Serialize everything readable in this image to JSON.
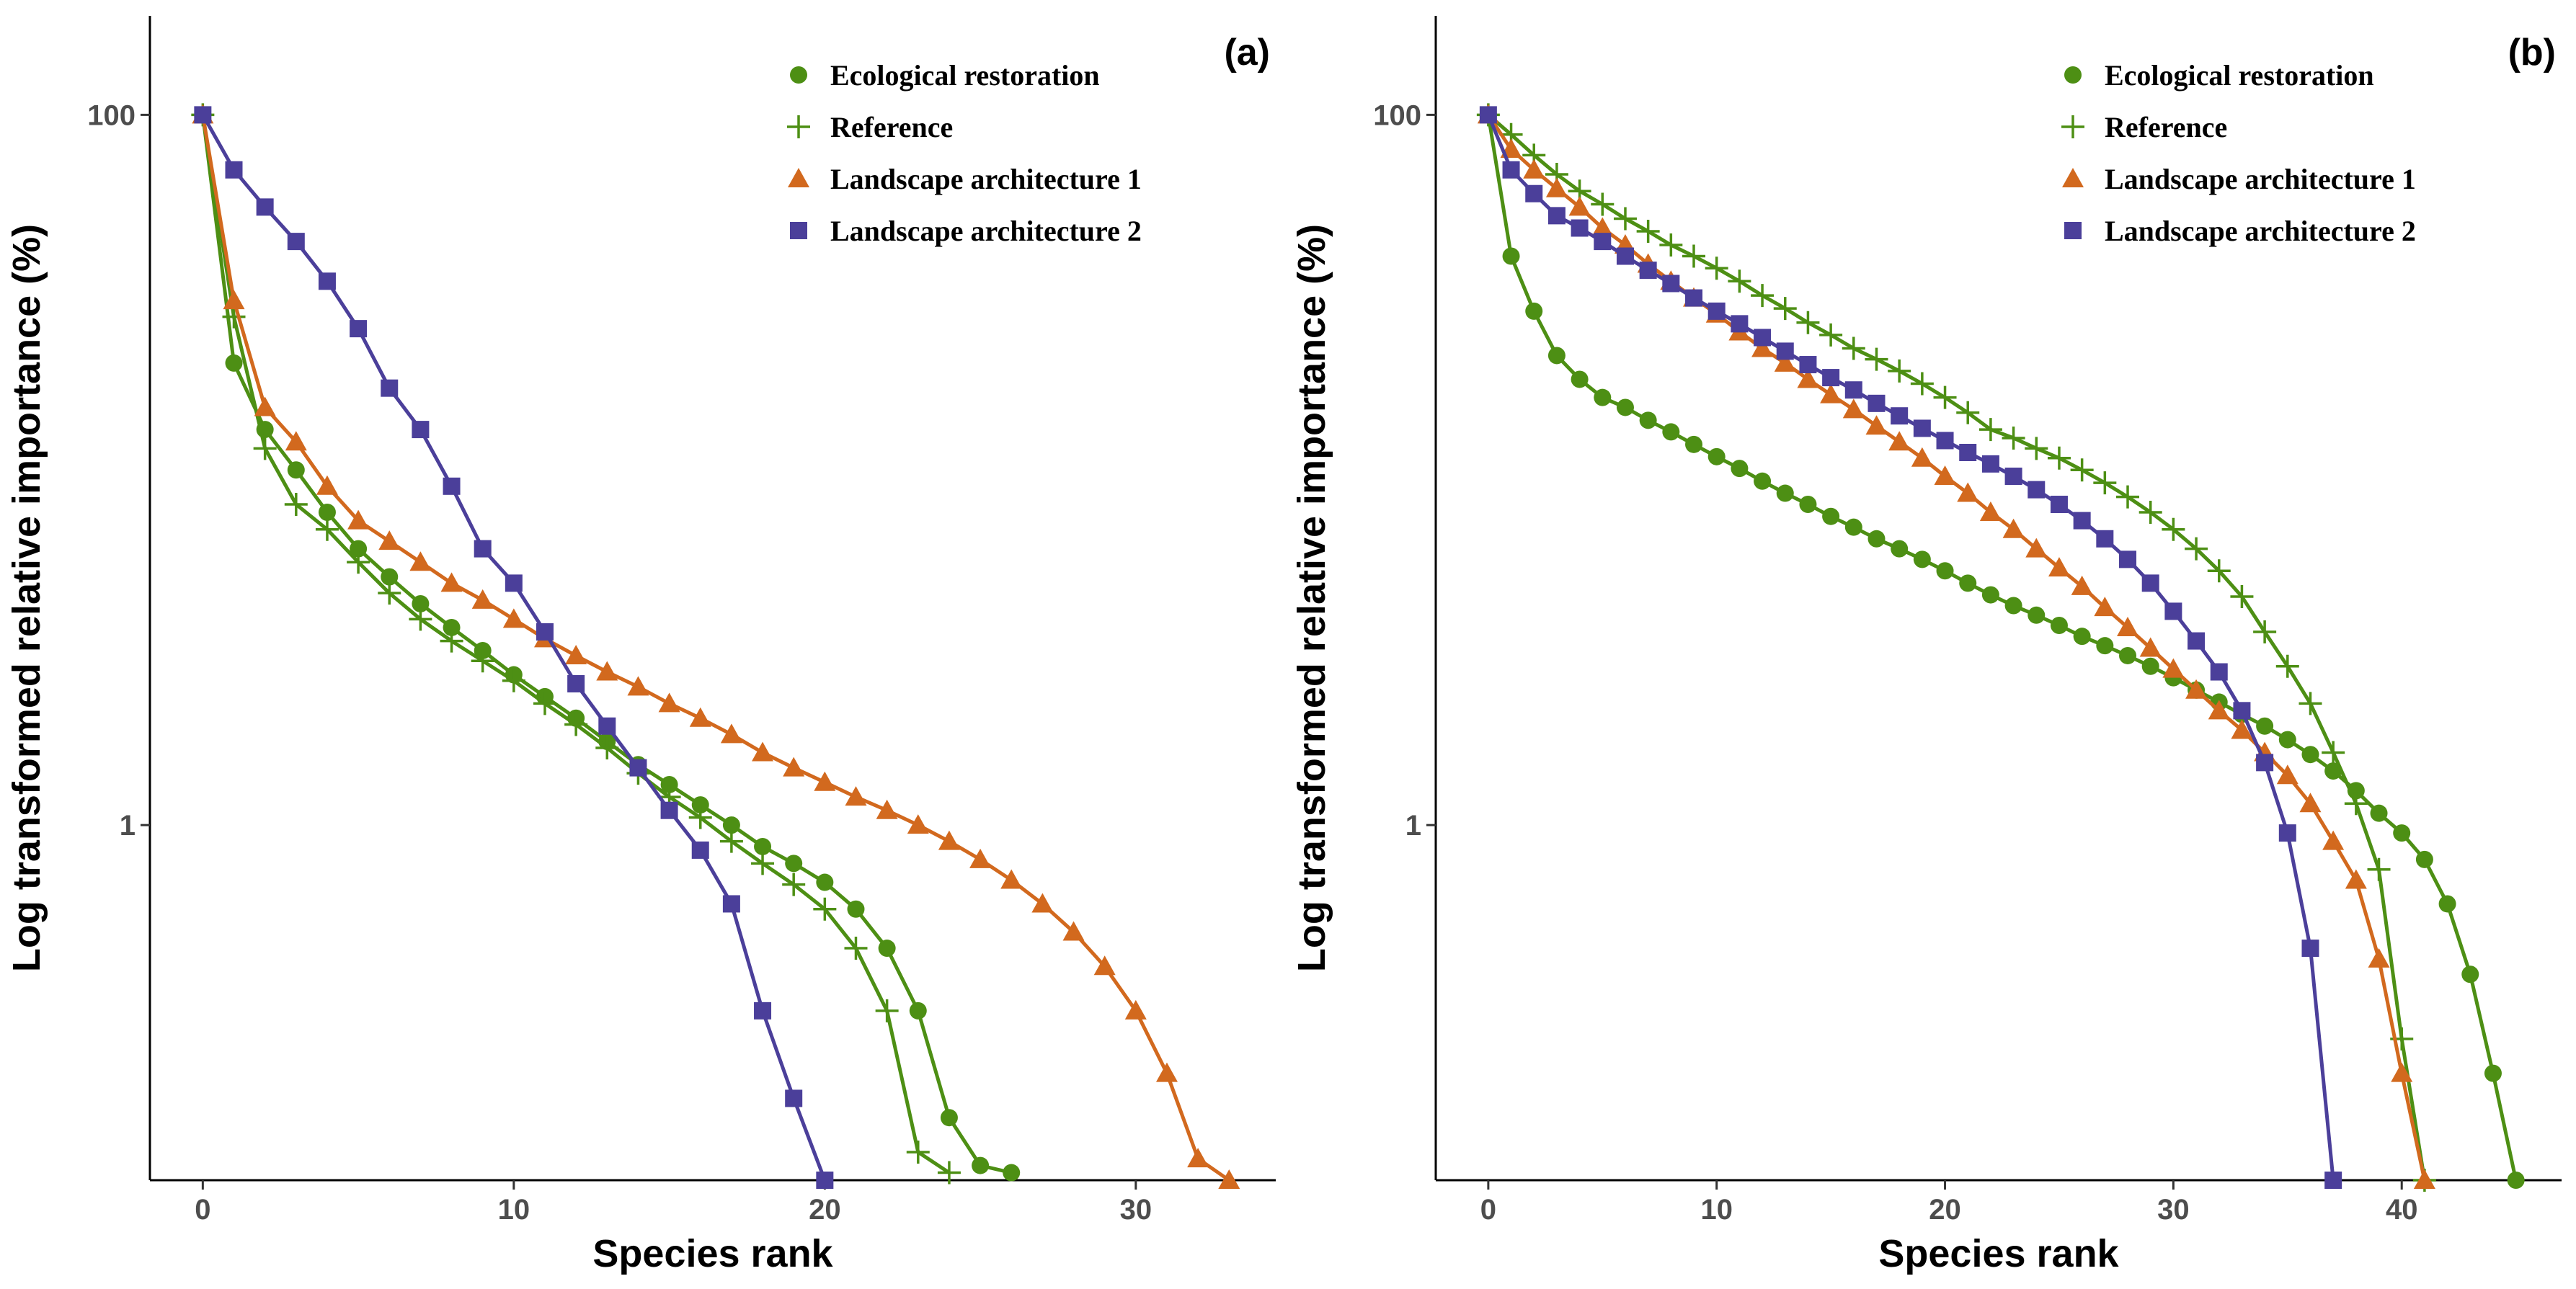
{
  "chart_data": [
    {
      "panel": "(a)",
      "type": "line",
      "xlabel": "Species rank",
      "ylabel": "Log transformed relative importance (%)",
      "xlim": [
        -1.7,
        34.5
      ],
      "ylim": [
        0.1,
        190
      ],
      "yscale": "log",
      "xticks": [
        0,
        10,
        20,
        30
      ],
      "yticks": [
        1,
        100
      ],
      "grid": false,
      "legend": "top-right",
      "series": [
        {
          "name": "Ecological restoration",
          "color": "#4d8f14",
          "marker": "circle",
          "x": [
            0,
            1,
            2,
            3,
            4,
            5,
            6,
            7,
            8,
            9,
            10,
            11,
            12,
            13,
            14,
            15,
            16,
            17,
            18,
            19,
            20,
            21,
            22,
            23,
            24,
            25,
            26
          ],
          "y": [
            100,
            20,
            13,
            10,
            7.6,
            6,
            5,
            4.2,
            3.6,
            3.1,
            2.65,
            2.3,
            2.0,
            1.72,
            1.48,
            1.3,
            1.14,
            1.0,
            0.87,
            0.78,
            0.69,
            0.58,
            0.45,
            0.3,
            0.15,
            0.11,
            0.105
          ]
        },
        {
          "name": "Reference",
          "color": "#4d8f14",
          "marker": "plus",
          "x": [
            0,
            1,
            2,
            3,
            4,
            5,
            6,
            7,
            8,
            9,
            10,
            11,
            12,
            13,
            14,
            15,
            16,
            17,
            18,
            19,
            20,
            21,
            22,
            23,
            24
          ],
          "y": [
            100,
            27,
            11.5,
            8,
            6.8,
            5.5,
            4.5,
            3.8,
            3.3,
            2.9,
            2.55,
            2.2,
            1.92,
            1.65,
            1.4,
            1.2,
            1.05,
            0.9,
            0.78,
            0.68,
            0.58,
            0.45,
            0.3,
            0.12,
            0.105
          ]
        },
        {
          "name": "Landscape architecture 1",
          "color": "#d2691e",
          "marker": "triangle",
          "x": [
            0,
            1,
            2,
            3,
            4,
            5,
            6,
            7,
            8,
            9,
            10,
            11,
            12,
            13,
            14,
            15,
            16,
            17,
            18,
            19,
            20,
            21,
            22,
            23,
            24,
            25,
            26,
            27,
            28,
            29,
            30,
            31,
            32,
            33
          ],
          "y": [
            100,
            30,
            15,
            12,
            9,
            7.2,
            6.3,
            5.5,
            4.8,
            4.3,
            3.8,
            3.35,
            3.0,
            2.7,
            2.45,
            2.2,
            2.0,
            1.8,
            1.6,
            1.45,
            1.32,
            1.2,
            1.1,
            1.0,
            0.9,
            0.8,
            0.7,
            0.6,
            0.5,
            0.4,
            0.3,
            0.2,
            0.115,
            0.1
          ]
        },
        {
          "name": "Landscape architecture 2",
          "color": "#4b3f9a",
          "marker": "square",
          "x": [
            0,
            1,
            2,
            3,
            4,
            5,
            6,
            7,
            8,
            9,
            10,
            11,
            12,
            13,
            14,
            15,
            16,
            17,
            18,
            19,
            20
          ],
          "y": [
            100,
            70,
            55,
            44,
            34,
            25,
            17,
            13,
            9,
            6,
            4.8,
            3.5,
            2.5,
            1.9,
            1.45,
            1.1,
            0.85,
            0.6,
            0.3,
            0.17,
            0.1
          ]
        }
      ]
    },
    {
      "panel": "(b)",
      "type": "line",
      "xlabel": "Species rank",
      "ylabel": "Log transformed relative importance (%)",
      "xlim": [
        -2.3,
        47
      ],
      "ylim": [
        0.1,
        190
      ],
      "yscale": "log",
      "xticks": [
        0,
        10,
        20,
        30,
        40
      ],
      "yticks": [
        1,
        100
      ],
      "grid": false,
      "legend": "top-right",
      "series": [
        {
          "name": "Ecological restoration",
          "color": "#4d8f14",
          "marker": "circle",
          "x": [
            0,
            1,
            2,
            3,
            4,
            5,
            6,
            7,
            8,
            9,
            10,
            11,
            12,
            13,
            14,
            15,
            16,
            17,
            18,
            19,
            20,
            21,
            22,
            23,
            24,
            25,
            26,
            27,
            28,
            29,
            30,
            31,
            32,
            33,
            34,
            35,
            36,
            37,
            38,
            39,
            40,
            41,
            42,
            43,
            44,
            45
          ],
          "y": [
            100,
            40,
            28,
            21,
            18,
            16,
            15,
            13.8,
            12.8,
            11.8,
            10.9,
            10.1,
            9.3,
            8.6,
            8.0,
            7.4,
            6.9,
            6.4,
            6.0,
            5.6,
            5.2,
            4.8,
            4.45,
            4.15,
            3.9,
            3.65,
            3.4,
            3.2,
            3.0,
            2.8,
            2.6,
            2.4,
            2.22,
            2.05,
            1.9,
            1.74,
            1.58,
            1.42,
            1.25,
            1.08,
            0.95,
            0.8,
            0.6,
            0.38,
            0.2,
            0.1
          ]
        },
        {
          "name": "Reference",
          "color": "#4d8f14",
          "marker": "plus",
          "x": [
            0,
            1,
            2,
            3,
            4,
            5,
            6,
            7,
            8,
            9,
            10,
            11,
            12,
            13,
            14,
            15,
            16,
            17,
            18,
            19,
            20,
            21,
            22,
            23,
            24,
            25,
            26,
            27,
            28,
            29,
            30,
            31,
            32,
            33,
            34,
            35,
            36,
            37,
            38,
            39,
            40,
            41
          ],
          "y": [
            100,
            88,
            77,
            68,
            61,
            56,
            51,
            47,
            43,
            40,
            37,
            34,
            31,
            28.5,
            26,
            24,
            22,
            20.5,
            19,
            17.5,
            16,
            14.5,
            13,
            12.3,
            11.5,
            10.8,
            10,
            9.2,
            8.4,
            7.6,
            6.8,
            6.0,
            5.2,
            4.4,
            3.5,
            2.8,
            2.2,
            1.6,
            1.15,
            0.75,
            0.25,
            0.1
          ]
        },
        {
          "name": "Landscape architecture 1",
          "color": "#d2691e",
          "marker": "triangle",
          "x": [
            0,
            1,
            2,
            3,
            4,
            5,
            6,
            7,
            8,
            9,
            10,
            11,
            12,
            13,
            14,
            15,
            16,
            17,
            18,
            19,
            20,
            21,
            22,
            23,
            24,
            25,
            26,
            27,
            28,
            29,
            30,
            31,
            32,
            33,
            34,
            35,
            36,
            37,
            38,
            39,
            40,
            41
          ],
          "y": [
            100,
            80,
            70,
            62,
            55,
            48,
            43,
            38,
            34,
            30.5,
            27.5,
            24.5,
            22,
            20,
            18,
            16.3,
            14.8,
            13.3,
            12,
            10.8,
            9.6,
            8.6,
            7.6,
            6.8,
            6.0,
            5.3,
            4.7,
            4.1,
            3.6,
            3.15,
            2.75,
            2.4,
            2.1,
            1.85,
            1.6,
            1.38,
            1.15,
            0.9,
            0.7,
            0.42,
            0.2,
            0.1
          ]
        },
        {
          "name": "Landscape architecture 2",
          "color": "#4b3f9a",
          "marker": "square",
          "x": [
            0,
            1,
            2,
            3,
            4,
            5,
            6,
            7,
            8,
            9,
            10,
            11,
            12,
            13,
            14,
            15,
            16,
            17,
            18,
            19,
            20,
            21,
            22,
            23,
            24,
            25,
            26,
            27,
            28,
            29,
            30,
            31,
            32,
            33,
            34,
            35,
            36,
            37
          ],
          "y": [
            100,
            70,
            60,
            52,
            48,
            44,
            40,
            36.5,
            33.5,
            30.5,
            28,
            25.8,
            23.6,
            21.6,
            19.8,
            18.2,
            16.8,
            15.4,
            14.2,
            13.1,
            12.1,
            11.2,
            10.4,
            9.6,
            8.8,
            8.0,
            7.2,
            6.4,
            5.6,
            4.8,
            4.0,
            3.3,
            2.7,
            2.1,
            1.5,
            0.95,
            0.45,
            0.1
          ]
        }
      ]
    }
  ]
}
